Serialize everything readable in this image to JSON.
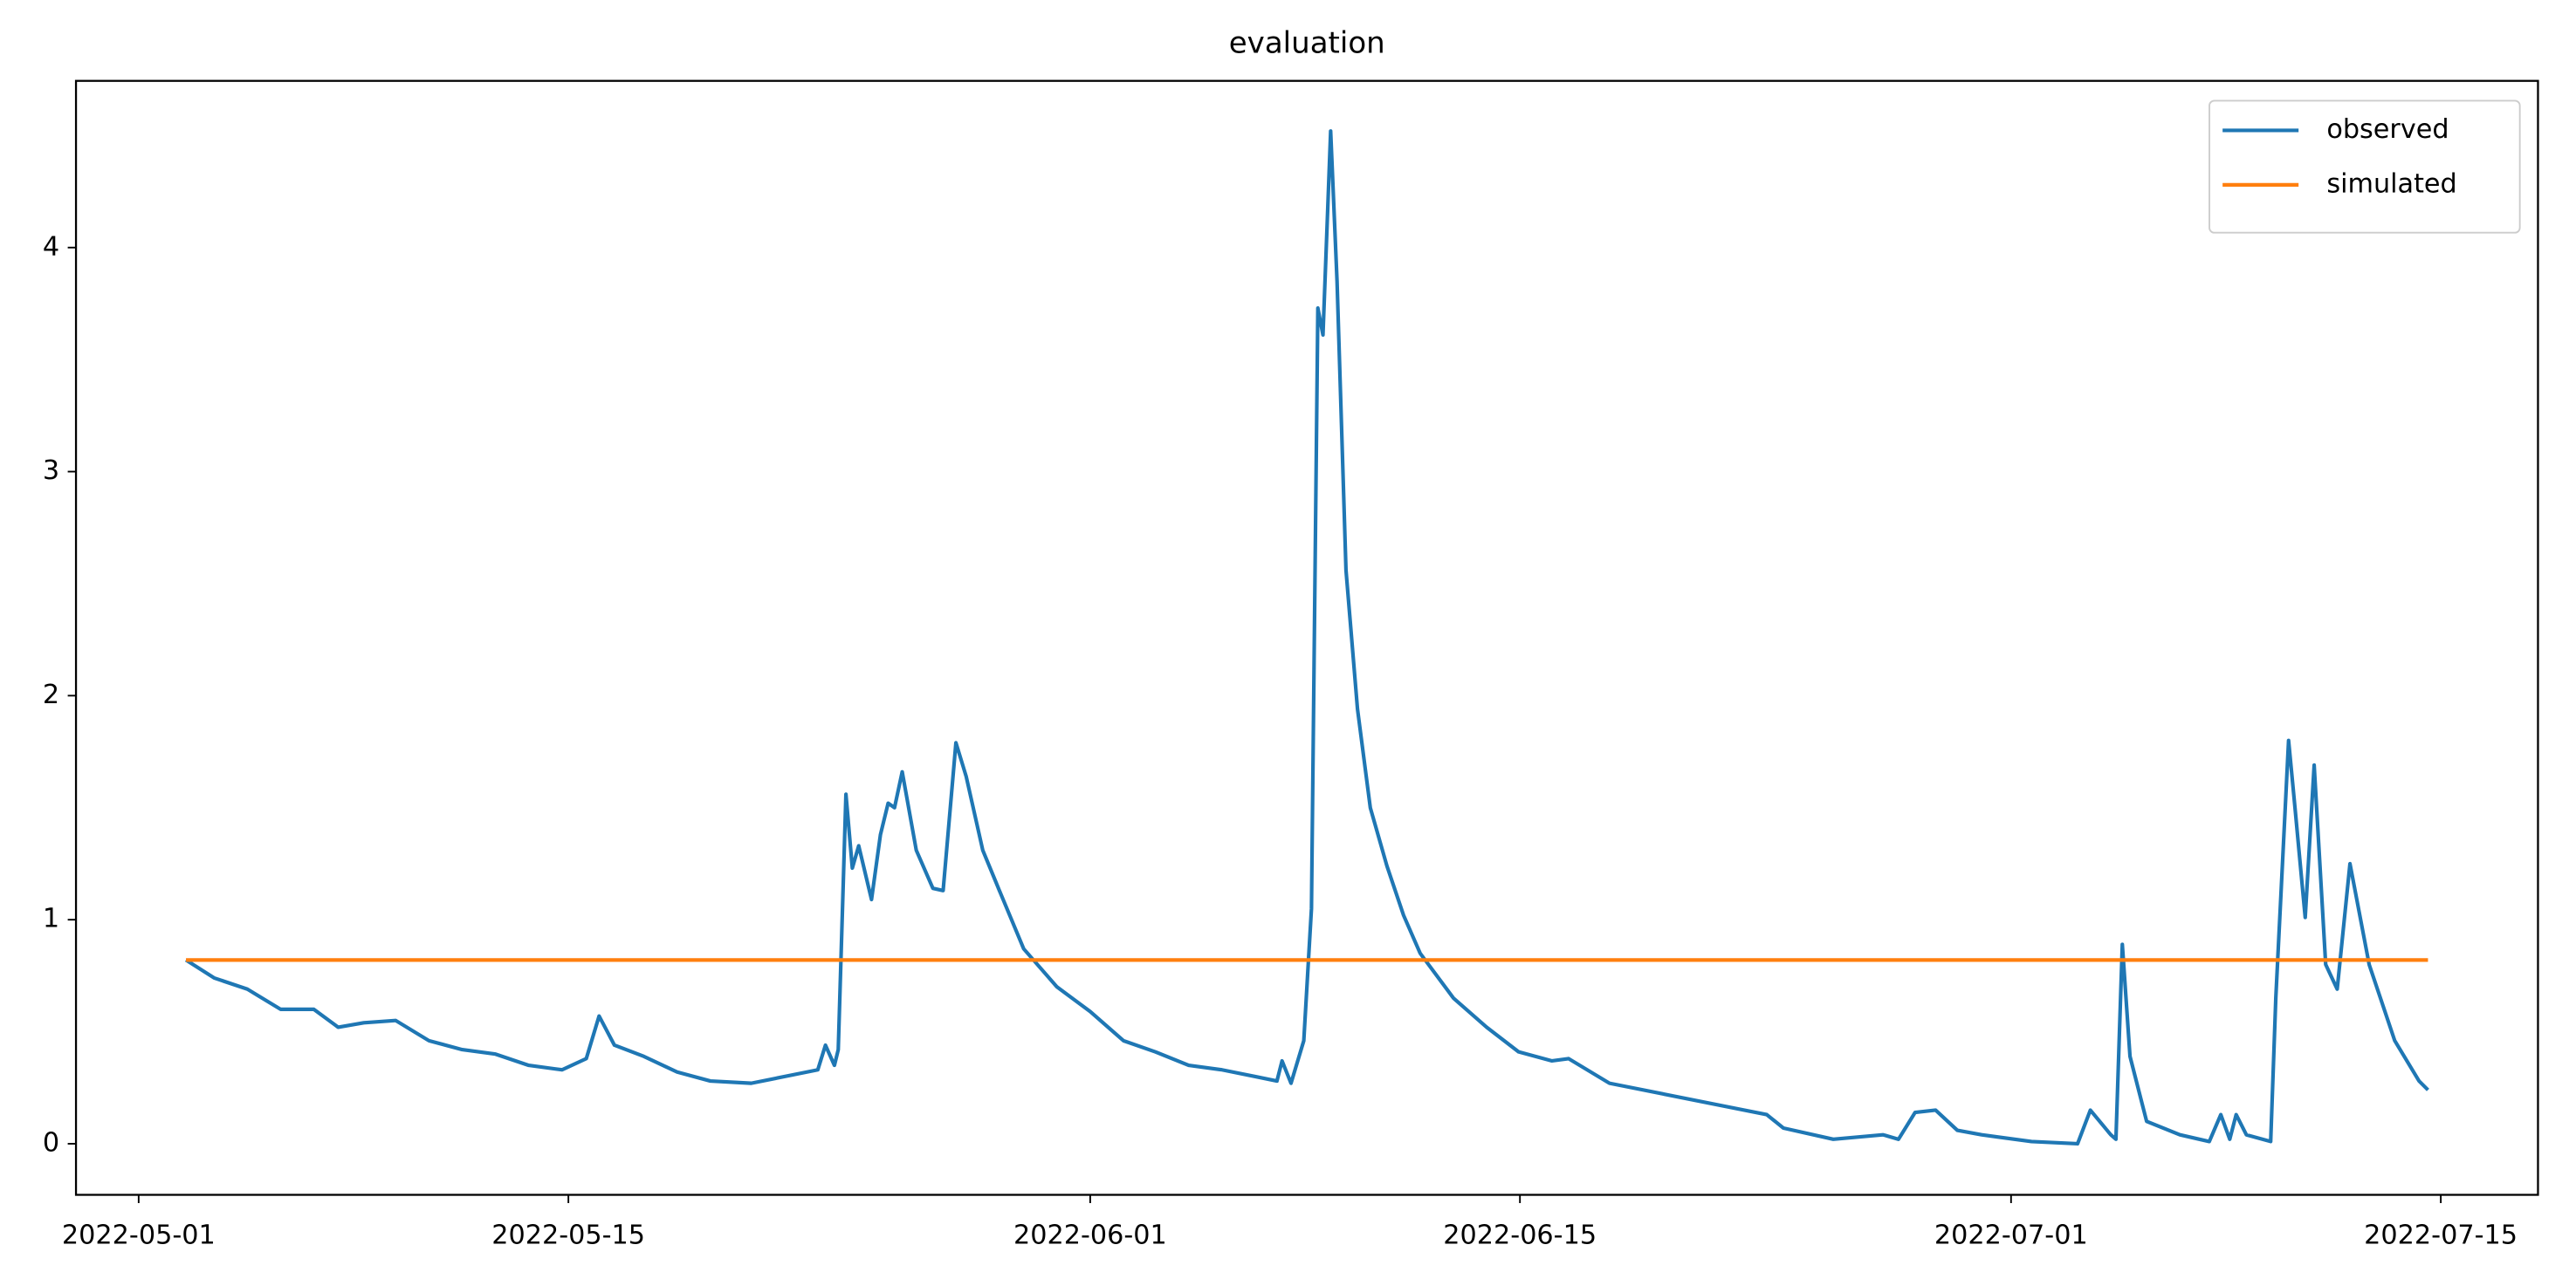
{
  "chart_data": {
    "type": "line",
    "title": "evaluation",
    "x": [
      "2022-05-02 13:00",
      "2022-05-03 11:00",
      "2022-05-04 13:00",
      "2022-05-05 15:00",
      "2022-05-06 17:00",
      "2022-05-07 12:00",
      "2022-05-08 08:00",
      "2022-05-09 09:00",
      "2022-05-10 11:00",
      "2022-05-11 13:00",
      "2022-05-12 15:00",
      "2022-05-13 17:00",
      "2022-05-14 19:00",
      "2022-05-15 14:00",
      "2022-05-16 00:00",
      "2022-05-16 12:00",
      "2022-05-17 11:00",
      "2022-05-18 13:00",
      "2022-05-19 15:00",
      "2022-05-20 23:00",
      "2022-05-23 03:00",
      "2022-05-23 09:00",
      "2022-05-23 16:00",
      "2022-05-23 19:00",
      "2022-05-24 01:00",
      "2022-05-24 06:00",
      "2022-05-24 11:00",
      "2022-05-24 21:00",
      "2022-05-25 04:00",
      "2022-05-25 10:00",
      "2022-05-25 15:00",
      "2022-05-25 21:00",
      "2022-05-26 08:00",
      "2022-05-26 21:00",
      "2022-05-27 05:00",
      "2022-05-27 15:00",
      "2022-05-27 23:00",
      "2022-05-28 12:00",
      "2022-05-29 01:00",
      "2022-05-29 20:00",
      "2022-05-30 22:00",
      "2022-06-01 00:00",
      "2022-06-02 02:00",
      "2022-06-03 03:00",
      "2022-06-04 05:00",
      "2022-06-05 07:00",
      "2022-06-06 09:00",
      "2022-06-07 02:00",
      "2022-06-07 06:00",
      "2022-06-07 13:00",
      "2022-06-07 23:00",
      "2022-06-08 05:00",
      "2022-06-08 10:00",
      "2022-06-08 14:00",
      "2022-06-08 20:00",
      "2022-06-09 01:00",
      "2022-06-09 08:00",
      "2022-06-09 17:00",
      "2022-06-10 03:00",
      "2022-06-10 16:00",
      "2022-06-11 05:00",
      "2022-06-11 18:00",
      "2022-06-12 20:00",
      "2022-06-13 22:00",
      "2022-06-14 23:00",
      "2022-06-16 01:00",
      "2022-06-16 14:00",
      "2022-06-17 22:00",
      "2022-06-23 01:00",
      "2022-06-23 14:00",
      "2022-06-25 05:00",
      "2022-06-26 20:00",
      "2022-06-27 08:00",
      "2022-06-27 21:00",
      "2022-06-28 13:00",
      "2022-06-29 06:00",
      "2022-06-30 01:00",
      "2022-07-01 16:00",
      "2022-07-03 04:00",
      "2022-07-03 14:00",
      "2022-07-04 06:00",
      "2022-07-04 10:00",
      "2022-07-04 15:00",
      "2022-07-04 21:00",
      "2022-07-05 10:00",
      "2022-07-06 12:00",
      "2022-07-07 11:00",
      "2022-07-07 20:00",
      "2022-07-08 03:00",
      "2022-07-08 08:00",
      "2022-07-08 16:00",
      "2022-07-09 11:00",
      "2022-07-09 15:00",
      "2022-07-10 01:00",
      "2022-07-10 06:00",
      "2022-07-10 14:00",
      "2022-07-10 21:00",
      "2022-07-11 06:00",
      "2022-07-11 15:00",
      "2022-07-12 01:00",
      "2022-07-12 16:00",
      "2022-07-13 12:00",
      "2022-07-14 07:00",
      "2022-07-14 14:00"
    ],
    "series": [
      {
        "name": "observed",
        "color": "#1f77b4",
        "values": [
          0.82,
          0.74,
          0.69,
          0.6,
          0.6,
          0.52,
          0.54,
          0.55,
          0.46,
          0.42,
          0.4,
          0.35,
          0.33,
          0.38,
          0.57,
          0.44,
          0.39,
          0.32,
          0.28,
          0.27,
          0.33,
          0.44,
          0.35,
          0.42,
          1.56,
          1.23,
          1.33,
          1.09,
          1.38,
          1.52,
          1.5,
          1.66,
          1.31,
          1.14,
          1.13,
          1.79,
          1.64,
          1.31,
          1.13,
          0.87,
          0.7,
          0.59,
          0.46,
          0.41,
          0.35,
          0.33,
          0.3,
          0.28,
          0.37,
          0.27,
          0.46,
          1.05,
          3.73,
          3.61,
          4.52,
          3.85,
          2.56,
          1.94,
          1.5,
          1.24,
          1.02,
          0.85,
          0.65,
          0.52,
          0.41,
          0.37,
          0.38,
          0.27,
          0.13,
          0.07,
          0.02,
          0.04,
          0.02,
          0.14,
          0.15,
          0.06,
          0.04,
          0.01,
          0.0,
          0.15,
          0.04,
          0.02,
          0.89,
          0.39,
          0.1,
          0.04,
          0.01,
          0.13,
          0.02,
          0.13,
          0.04,
          0.01,
          0.65,
          1.8,
          1.5,
          1.01,
          1.69,
          0.8,
          0.69,
          1.25,
          0.8,
          0.46,
          0.28,
          0.24
        ]
      },
      {
        "name": "simulated",
        "color": "#ff7f0e",
        "values": [
          0.82,
          0.82,
          0.82,
          0.82,
          0.82,
          0.82,
          0.82,
          0.82,
          0.82,
          0.82,
          0.82,
          0.82,
          0.82,
          0.82,
          0.82,
          0.82,
          0.82,
          0.82,
          0.82,
          0.82,
          0.82,
          0.82,
          0.82,
          0.82,
          0.82,
          0.82,
          0.82,
          0.82,
          0.82,
          0.82,
          0.82,
          0.82,
          0.82,
          0.82,
          0.82,
          0.82,
          0.82,
          0.82,
          0.82,
          0.82,
          0.82,
          0.82,
          0.82,
          0.82,
          0.82,
          0.82,
          0.82,
          0.82,
          0.82,
          0.82,
          0.82,
          0.82,
          0.82,
          0.82,
          0.82,
          0.82,
          0.82,
          0.82,
          0.82,
          0.82,
          0.82,
          0.82,
          0.82,
          0.82,
          0.82,
          0.82,
          0.82,
          0.82,
          0.82,
          0.82,
          0.82,
          0.82,
          0.82,
          0.82,
          0.82,
          0.82,
          0.82,
          0.82,
          0.82,
          0.82,
          0.82,
          0.82,
          0.82,
          0.82,
          0.82,
          0.82,
          0.82,
          0.82,
          0.82,
          0.82,
          0.82,
          0.82,
          0.82,
          0.82,
          0.82,
          0.82,
          0.82,
          0.82,
          0.82,
          0.82,
          0.82,
          0.82,
          0.82,
          0.82
        ]
      }
    ],
    "xlim": [
      "2022-04-28 23:00",
      "2022-07-18 04:00"
    ],
    "xticks": [
      "2022-05-01",
      "2022-05-15",
      "2022-06-01",
      "2022-06-15",
      "2022-07-01",
      "2022-07-15"
    ],
    "ylim": [
      -0.228,
      4.744
    ],
    "yticks": [
      0,
      1,
      2,
      3,
      4
    ],
    "legend": "upper right",
    "grid": false
  }
}
